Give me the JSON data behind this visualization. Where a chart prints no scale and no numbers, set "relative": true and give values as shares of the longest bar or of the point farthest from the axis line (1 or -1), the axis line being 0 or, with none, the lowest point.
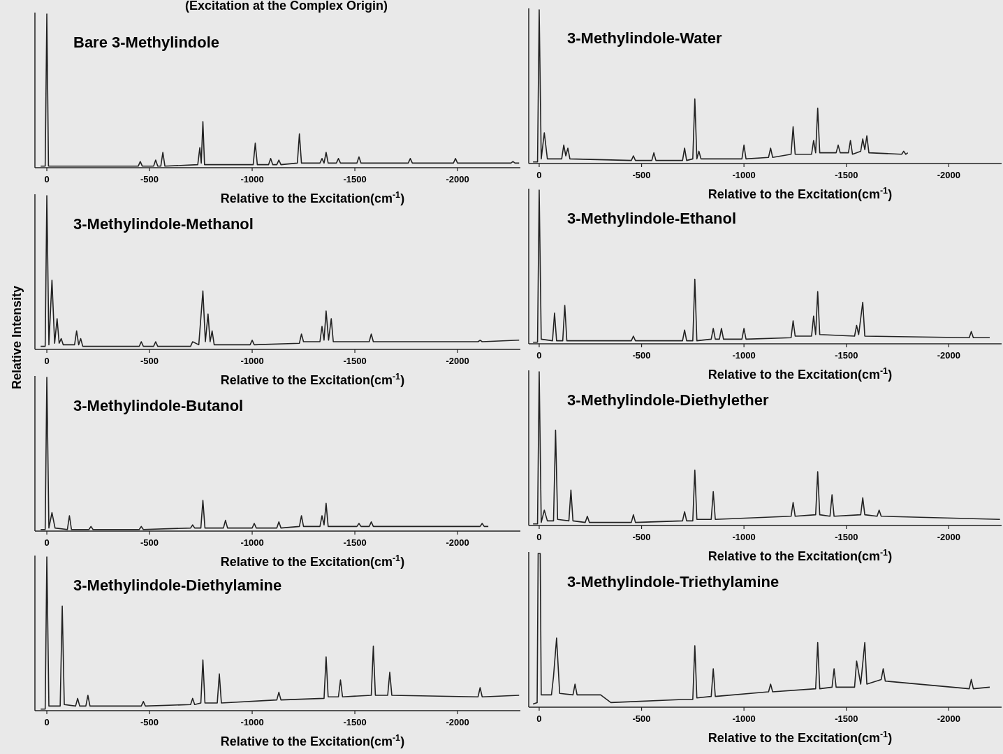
{
  "chart_data": [
    {
      "type": "line",
      "title": "Bare 3-Methylindole",
      "annotations": [
        "(Excitation at the Complex Origin)"
      ],
      "xlabel": "Relative to the Excitation(cm$^{-1}$)",
      "relative": true,
      "xlim": [
        58,
        -2306
      ],
      "xticks": [
        0,
        -500,
        -1000,
        -1500,
        -2000
      ],
      "series": [
        {
          "color": "#222222",
          "x": [
            30,
            8,
            0,
            -8,
            -300,
            -445,
            -455,
            -465,
            -520,
            -530,
            -540,
            -555,
            -565,
            -575,
            -735,
            -745,
            -752,
            -760,
            -768,
            -1005,
            -1015,
            -1025,
            -1080,
            -1090,
            -1100,
            -1120,
            -1130,
            -1140,
            -1220,
            -1230,
            -1240,
            -1330,
            -1340,
            -1350,
            -1360,
            -1370,
            -1410,
            -1420,
            -1430,
            -1510,
            -1520,
            -1530,
            -1760,
            -1770,
            -1780,
            -1980,
            -1990,
            -2000,
            -2260,
            -2270,
            -2280,
            -2300
          ],
          "values": [
            0.01,
            0.01,
            1,
            0.01,
            0.01,
            0.01,
            0.04,
            0.01,
            0.01,
            0.05,
            0.01,
            0.01,
            0.1,
            0.01,
            0.02,
            0.13,
            0.03,
            0.3,
            0.02,
            0.02,
            0.16,
            0.02,
            0.02,
            0.06,
            0.02,
            0.02,
            0.05,
            0.02,
            0.03,
            0.22,
            0.03,
            0.03,
            0.06,
            0.03,
            0.1,
            0.03,
            0.03,
            0.06,
            0.03,
            0.03,
            0.07,
            0.03,
            0.03,
            0.06,
            0.03,
            0.03,
            0.06,
            0.03,
            0.03,
            0.04,
            0.03,
            0.03
          ]
        }
      ]
    },
    {
      "type": "line",
      "title": "3-Methylindole-Water",
      "xlabel": "Relative to the Excitation(cm$^{-1}$)",
      "relative": true,
      "xlim": [
        51,
        -2258
      ],
      "xticks": [
        0,
        -500,
        -1000,
        -1500,
        -2000
      ],
      "series": [
        {
          "color": "#222222",
          "x": [
            30,
            8,
            0,
            -10,
            -25,
            -40,
            -110,
            -120,
            -130,
            -140,
            -150,
            -450,
            -460,
            -470,
            -550,
            -560,
            -570,
            -700,
            -710,
            -720,
            -750,
            -760,
            -770,
            -780,
            -790,
            -990,
            -1000,
            -1010,
            -1120,
            -1130,
            -1140,
            -1230,
            -1240,
            -1250,
            -1330,
            -1340,
            -1350,
            -1360,
            -1370,
            -1450,
            -1460,
            -1470,
            -1510,
            -1520,
            -1530,
            -1570,
            -1580,
            -1590,
            -1600,
            -1610,
            -1770,
            -1780,
            -1790,
            -1800
          ],
          "values": [
            0.01,
            0.01,
            1,
            0.03,
            0.2,
            0.03,
            0.03,
            0.12,
            0.05,
            0.1,
            0.03,
            0.02,
            0.05,
            0.02,
            0.02,
            0.07,
            0.02,
            0.02,
            0.1,
            0.02,
            0.03,
            0.42,
            0.03,
            0.08,
            0.03,
            0.03,
            0.12,
            0.03,
            0.04,
            0.1,
            0.04,
            0.06,
            0.24,
            0.06,
            0.06,
            0.15,
            0.07,
            0.36,
            0.07,
            0.07,
            0.12,
            0.07,
            0.07,
            0.15,
            0.06,
            0.08,
            0.16,
            0.09,
            0.18,
            0.07,
            0.06,
            0.08,
            0.06,
            0.07
          ]
        }
      ]
    },
    {
      "type": "line",
      "title": "3-Methylindole-Methanol",
      "ylabel": "Relative Intensity",
      "xlabel": "Relative to the Excitation(cm$^{-1}$)",
      "relative": true,
      "xlim": [
        58,
        -2306
      ],
      "xticks": [
        0,
        -500,
        -1000,
        -1500,
        -2000
      ],
      "series": [
        {
          "color": "#222222",
          "x": [
            30,
            8,
            0,
            -10,
            -25,
            -38,
            -50,
            -60,
            -70,
            -80,
            -135,
            -145,
            -155,
            -165,
            -175,
            -450,
            -460,
            -470,
            -520,
            -530,
            -540,
            -700,
            -710,
            -740,
            -760,
            -772,
            -785,
            -795,
            -805,
            -815,
            -990,
            -1000,
            -1010,
            -1230,
            -1240,
            -1250,
            -1330,
            -1340,
            -1350,
            -1360,
            -1372,
            -1385,
            -1395,
            -1570,
            -1580,
            -1590,
            -1800,
            -1900,
            -2000,
            -2100,
            -2110,
            -2120,
            -2300
          ],
          "values": [
            0.02,
            0.02,
            1,
            0.03,
            0.45,
            0.04,
            0.2,
            0.04,
            0.07,
            0.03,
            0.03,
            0.12,
            0.03,
            0.07,
            0.02,
            0.02,
            0.05,
            0.02,
            0.02,
            0.05,
            0.02,
            0.02,
            0.05,
            0.03,
            0.38,
            0.05,
            0.23,
            0.05,
            0.12,
            0.03,
            0.03,
            0.06,
            0.03,
            0.04,
            0.1,
            0.05,
            0.05,
            0.15,
            0.06,
            0.25,
            0.06,
            0.2,
            0.05,
            0.05,
            0.1,
            0.05,
            0.05,
            0.05,
            0.05,
            0.05,
            0.06,
            0.05,
            0.06
          ]
        }
      ]
    },
    {
      "type": "line",
      "title": "3-Methylindole-Ethanol",
      "xlabel": "Relative to the Excitation(cm$^{-1}$)",
      "relative": true,
      "xlim": [
        51,
        -2258
      ],
      "xticks": [
        0,
        -500,
        -1000,
        -1500,
        -2000
      ],
      "series": [
        {
          "color": "#222222",
          "x": [
            30,
            8,
            0,
            -10,
            -65,
            -75,
            -85,
            -115,
            -125,
            -135,
            -450,
            -460,
            -470,
            -700,
            -710,
            -720,
            -750,
            -760,
            -770,
            -840,
            -850,
            -860,
            -880,
            -890,
            -900,
            -990,
            -1000,
            -1010,
            -1230,
            -1240,
            -1250,
            -1330,
            -1340,
            -1350,
            -1360,
            -1370,
            -1540,
            -1550,
            -1560,
            -1580,
            -1590,
            -2100,
            -2110,
            -2120,
            -2200
          ],
          "values": [
            0.01,
            0.01,
            1,
            0.03,
            0.02,
            0.2,
            0.02,
            0.02,
            0.25,
            0.02,
            0.02,
            0.05,
            0.02,
            0.02,
            0.09,
            0.02,
            0.02,
            0.42,
            0.02,
            0.03,
            0.1,
            0.03,
            0.03,
            0.1,
            0.03,
            0.03,
            0.1,
            0.03,
            0.04,
            0.15,
            0.05,
            0.05,
            0.18,
            0.06,
            0.34,
            0.06,
            0.05,
            0.12,
            0.06,
            0.27,
            0.05,
            0.04,
            0.08,
            0.04,
            0.04
          ]
        }
      ]
    },
    {
      "type": "line",
      "title": "3-Methylindole-Butanol",
      "xlabel": "Relative to the Excitation(cm$^{-1}$)",
      "relative": true,
      "xlim": [
        58,
        -2306
      ],
      "xticks": [
        0,
        -500,
        -1000,
        -1500,
        -2000
      ],
      "series": [
        {
          "color": "#222222",
          "x": [
            30,
            8,
            0,
            -10,
            -25,
            -40,
            -100,
            -110,
            -120,
            -205,
            -215,
            -225,
            -450,
            -460,
            -470,
            -700,
            -710,
            -720,
            -750,
            -760,
            -770,
            -860,
            -870,
            -880,
            -1000,
            -1010,
            -1020,
            -1120,
            -1130,
            -1140,
            -1230,
            -1240,
            -1250,
            -1330,
            -1340,
            -1350,
            -1360,
            -1370,
            -1510,
            -1520,
            -1530,
            -1570,
            -1580,
            -1590,
            -2110,
            -2120,
            -2130,
            -2150
          ],
          "values": [
            0.01,
            0.01,
            1,
            0.02,
            0.12,
            0.02,
            0.01,
            0.1,
            0.01,
            0.01,
            0.03,
            0.01,
            0.01,
            0.03,
            0.01,
            0.02,
            0.04,
            0.02,
            0.02,
            0.2,
            0.02,
            0.02,
            0.07,
            0.02,
            0.02,
            0.05,
            0.02,
            0.02,
            0.06,
            0.02,
            0.03,
            0.1,
            0.03,
            0.03,
            0.1,
            0.04,
            0.18,
            0.03,
            0.03,
            0.05,
            0.03,
            0.03,
            0.06,
            0.03,
            0.03,
            0.05,
            0.03,
            0.03
          ]
        }
      ]
    },
    {
      "type": "line",
      "title": "3-Methylindole-Diethylether",
      "xlabel": "Relative to the Excitation(cm$^{-1}$)",
      "relative": true,
      "xlim": [
        51,
        -2258
      ],
      "xticks": [
        0,
        -500,
        -1000,
        -1500,
        -2000
      ],
      "series": [
        {
          "color": "#222222",
          "x": [
            30,
            8,
            0,
            -10,
            -25,
            -40,
            -70,
            -80,
            -90,
            -145,
            -155,
            -165,
            -225,
            -235,
            -245,
            -450,
            -460,
            -470,
            -700,
            -710,
            -720,
            -750,
            -760,
            -770,
            -840,
            -850,
            -860,
            -1230,
            -1240,
            -1250,
            -1350,
            -1360,
            -1370,
            -1420,
            -1430,
            -1440,
            -1570,
            -1580,
            -1590,
            -1650,
            -1660,
            -1670,
            -2250
          ],
          "values": [
            0.01,
            0.01,
            1,
            0.02,
            0.1,
            0.03,
            0.03,
            0.62,
            0.04,
            0.03,
            0.23,
            0.03,
            0.02,
            0.06,
            0.02,
            0.02,
            0.07,
            0.02,
            0.03,
            0.09,
            0.03,
            0.03,
            0.36,
            0.04,
            0.04,
            0.22,
            0.04,
            0.06,
            0.15,
            0.06,
            0.07,
            0.35,
            0.07,
            0.06,
            0.2,
            0.06,
            0.07,
            0.18,
            0.07,
            0.06,
            0.1,
            0.06,
            0.04
          ]
        }
      ]
    },
    {
      "type": "line",
      "title": "3-Methylindole-Diethylamine",
      "xlabel": "Relative to the Excitation(cm$^{-1}$)",
      "relative": true,
      "xlim": [
        58,
        -2306
      ],
      "xticks": [
        0,
        -500,
        -1000,
        -1500,
        -2000
      ],
      "series": [
        {
          "color": "#222222",
          "x": [
            30,
            8,
            0,
            -10,
            -65,
            -75,
            -85,
            -140,
            -150,
            -160,
            -190,
            -200,
            -210,
            -460,
            -470,
            -480,
            -700,
            -710,
            -720,
            -750,
            -760,
            -770,
            -830,
            -840,
            -850,
            -1120,
            -1130,
            -1140,
            -1350,
            -1360,
            -1370,
            -1420,
            -1430,
            -1440,
            -1580,
            -1590,
            -1600,
            -1660,
            -1670,
            -1680,
            -2100,
            -2110,
            -2120,
            -2300
          ],
          "values": [
            0.01,
            0.01,
            1,
            0.03,
            0.03,
            0.68,
            0.04,
            0.03,
            0.08,
            0.03,
            0.03,
            0.1,
            0.03,
            0.03,
            0.06,
            0.03,
            0.04,
            0.08,
            0.04,
            0.05,
            0.33,
            0.05,
            0.05,
            0.24,
            0.05,
            0.07,
            0.12,
            0.07,
            0.08,
            0.35,
            0.09,
            0.09,
            0.2,
            0.09,
            0.1,
            0.42,
            0.1,
            0.1,
            0.25,
            0.1,
            0.09,
            0.15,
            0.09,
            0.1
          ]
        }
      ]
    },
    {
      "type": "line",
      "title": "3-Methylindole-Triethylamine",
      "xlabel": "Relative to the Excitation(cm$^{-1}$)",
      "relative": true,
      "xlim": [
        51,
        -2258
      ],
      "xticks": [
        0,
        -500,
        -1000,
        -1500,
        -2000
      ],
      "series": [
        {
          "color": "#222222",
          "x": [
            30,
            10,
            5,
            -5,
            -10,
            -60,
            -70,
            -85,
            -100,
            -165,
            -175,
            -185,
            -300,
            -350,
            -700,
            -750,
            -760,
            -770,
            -840,
            -850,
            -860,
            -1120,
            -1130,
            -1140,
            -1350,
            -1360,
            -1370,
            -1430,
            -1440,
            -1450,
            -1540,
            -1550,
            -1570,
            -1590,
            -1600,
            -1670,
            -1680,
            -1690,
            -2100,
            -2110,
            -2120,
            -2200
          ],
          "values": [
            0.02,
            0.03,
            1,
            1,
            0.08,
            0.08,
            0.2,
            0.45,
            0.09,
            0.08,
            0.15,
            0.08,
            0.08,
            0.03,
            0.05,
            0.05,
            0.4,
            0.06,
            0.07,
            0.25,
            0.07,
            0.1,
            0.15,
            0.1,
            0.12,
            0.42,
            0.12,
            0.13,
            0.25,
            0.13,
            0.13,
            0.3,
            0.15,
            0.42,
            0.15,
            0.18,
            0.25,
            0.17,
            0.12,
            0.18,
            0.12,
            0.13
          ]
        }
      ]
    }
  ]
}
